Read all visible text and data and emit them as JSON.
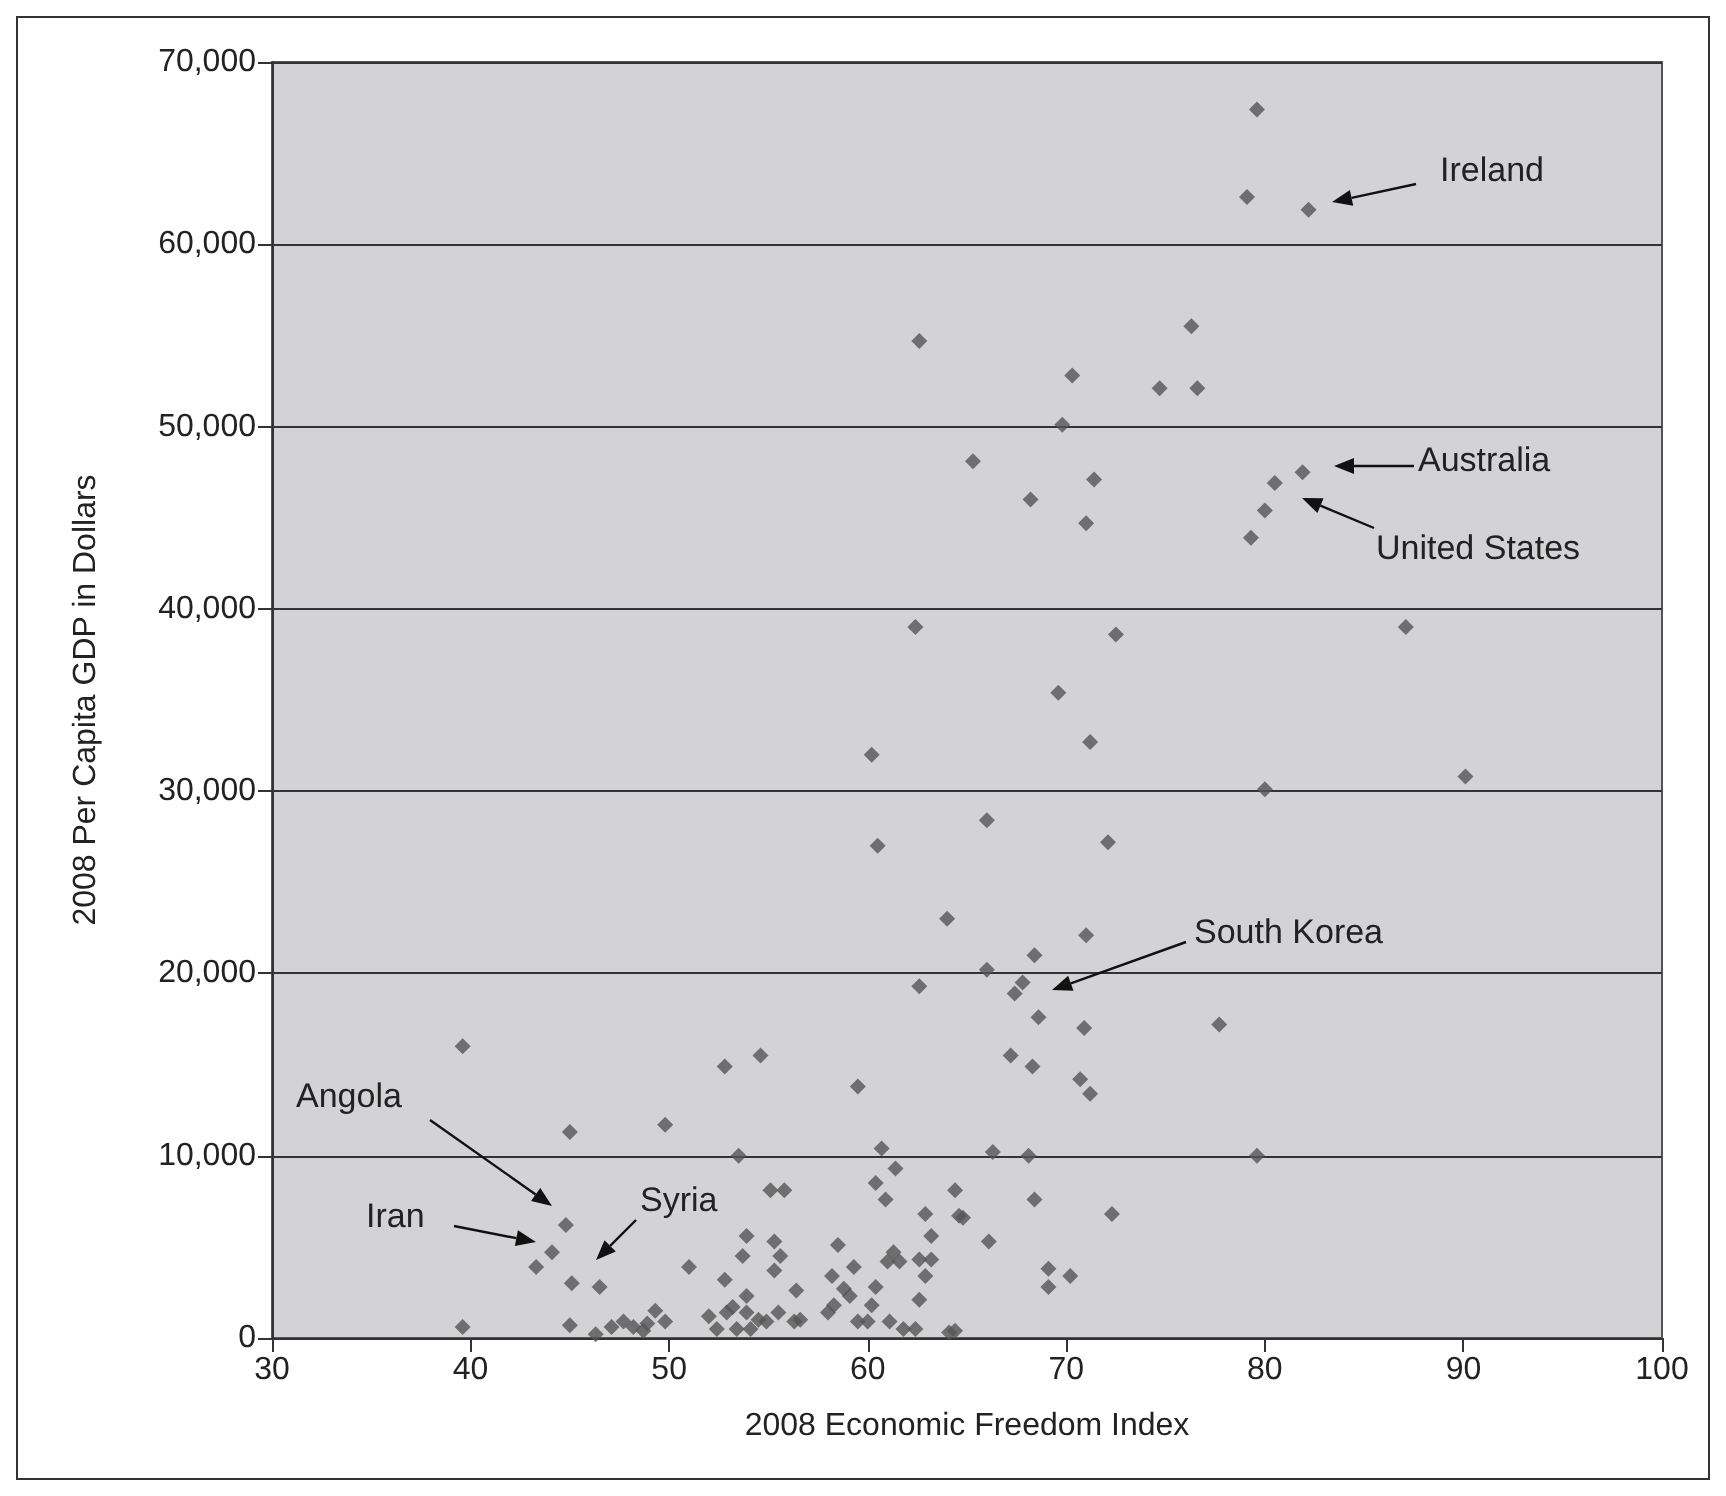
{
  "chart_data": {
    "type": "scatter",
    "xlabel": "2008 Economic Freedom Index",
    "ylabel": "2008 Per Capita GDP in Dollars",
    "xlim": [
      30,
      100
    ],
    "xticks": [
      30,
      40,
      50,
      60,
      70,
      80,
      90,
      100
    ],
    "ylim": [
      0,
      70000
    ],
    "yticks": [
      {
        "value": 0,
        "label": "0"
      },
      {
        "value": 10000,
        "label": "10,000"
      },
      {
        "value": 20000,
        "label": "20,000"
      },
      {
        "value": 30000,
        "label": "30,000"
      },
      {
        "value": 40000,
        "label": "40,000"
      },
      {
        "value": 50000,
        "label": "50,000"
      },
      {
        "value": 60000,
        "label": "60,000"
      },
      {
        "value": 70000,
        "label": "70,000"
      }
    ],
    "grid": "y",
    "marker": "diamond",
    "series": [
      {
        "color": "#555555",
        "x": [
          39.6,
          39.6,
          60.5,
          64.0,
          62.6,
          52.8,
          54.6,
          59.5,
          45.0,
          49.8,
          53.5,
          60.7,
          61.4,
          60.4,
          60.9,
          55.1,
          55.8,
          44.8,
          44.1,
          43.3,
          45.1,
          46.5,
          51.0,
          53.9,
          53.7,
          55.3,
          55.6,
          55.3,
          52.8,
          53.9,
          56.4,
          58.5,
          58.2,
          58.8,
          59.3,
          59.1,
          58.3,
          60.4,
          60.2,
          62.9,
          63.2,
          61.3,
          61.0,
          61.6,
          62.6,
          63.2,
          62.9,
          62.6,
          45.0,
          46.3,
          47.1,
          47.7,
          48.2,
          48.7,
          48.9,
          49.3,
          49.8,
          52.0,
          52.4,
          52.9,
          53.2,
          53.4,
          53.9,
          54.1,
          54.5,
          54.9,
          55.5,
          56.3,
          56.6,
          58.0,
          59.5,
          60.0,
          61.1,
          61.8,
          62.4,
          64.1,
          90.1,
          80.0,
          66.0,
          72.1,
          71.0,
          68.4,
          66.0,
          67.8,
          67.4,
          68.6,
          70.9,
          77.7,
          67.2,
          68.3,
          70.7,
          71.2,
          66.3,
          68.1,
          79.6,
          64.4,
          64.6,
          64.8,
          68.4,
          72.3,
          66.1,
          69.1,
          70.2,
          69.1,
          64.4,
          79.6,
          79.1,
          82.2,
          62.6,
          76.3,
          70.3,
          74.7,
          76.6,
          69.8,
          65.3,
          71.4,
          68.2,
          71.0,
          81.9,
          80.5,
          80.0,
          79.3,
          62.4,
          72.5,
          87.1,
          69.6,
          71.2,
          60.2
        ],
        "values": [
          16000,
          600,
          27000,
          23000,
          19300,
          14900,
          15500,
          13800,
          11300,
          11700,
          10000,
          10400,
          9300,
          8500,
          7600,
          8100,
          8100,
          6200,
          4700,
          3900,
          3000,
          2800,
          3900,
          5600,
          4500,
          5300,
          4500,
          3700,
          3200,
          2300,
          2600,
          5100,
          3400,
          2700,
          3900,
          2300,
          1800,
          2800,
          1800,
          6800,
          5600,
          4700,
          4200,
          4200,
          4300,
          4300,
          3400,
          2100,
          700,
          200,
          600,
          900,
          600,
          400,
          800,
          1500,
          900,
          1200,
          500,
          1400,
          1700,
          500,
          1400,
          500,
          1000,
          900,
          1400,
          900,
          1000,
          1400,
          900,
          900,
          900,
          500,
          500,
          300,
          30800,
          30100,
          28400,
          27200,
          22100,
          21000,
          20200,
          19500,
          18900,
          17600,
          17000,
          17200,
          15500,
          14900,
          14200,
          13400,
          10200,
          10000,
          10000,
          8100,
          6700,
          6600,
          7600,
          6800,
          5300,
          3800,
          3400,
          2800,
          400,
          67400,
          62600,
          61900,
          54700,
          55500,
          52800,
          52100,
          52100,
          50100,
          48100,
          47100,
          46000,
          44700,
          47500,
          46900,
          45400,
          43900,
          39000,
          38600,
          39000,
          35400,
          32700,
          32000
        ]
      }
    ],
    "annotations": [
      "Ireland",
      "Australia",
      "United States",
      "South Korea",
      "Angola",
      "Iran",
      "Syria"
    ]
  }
}
